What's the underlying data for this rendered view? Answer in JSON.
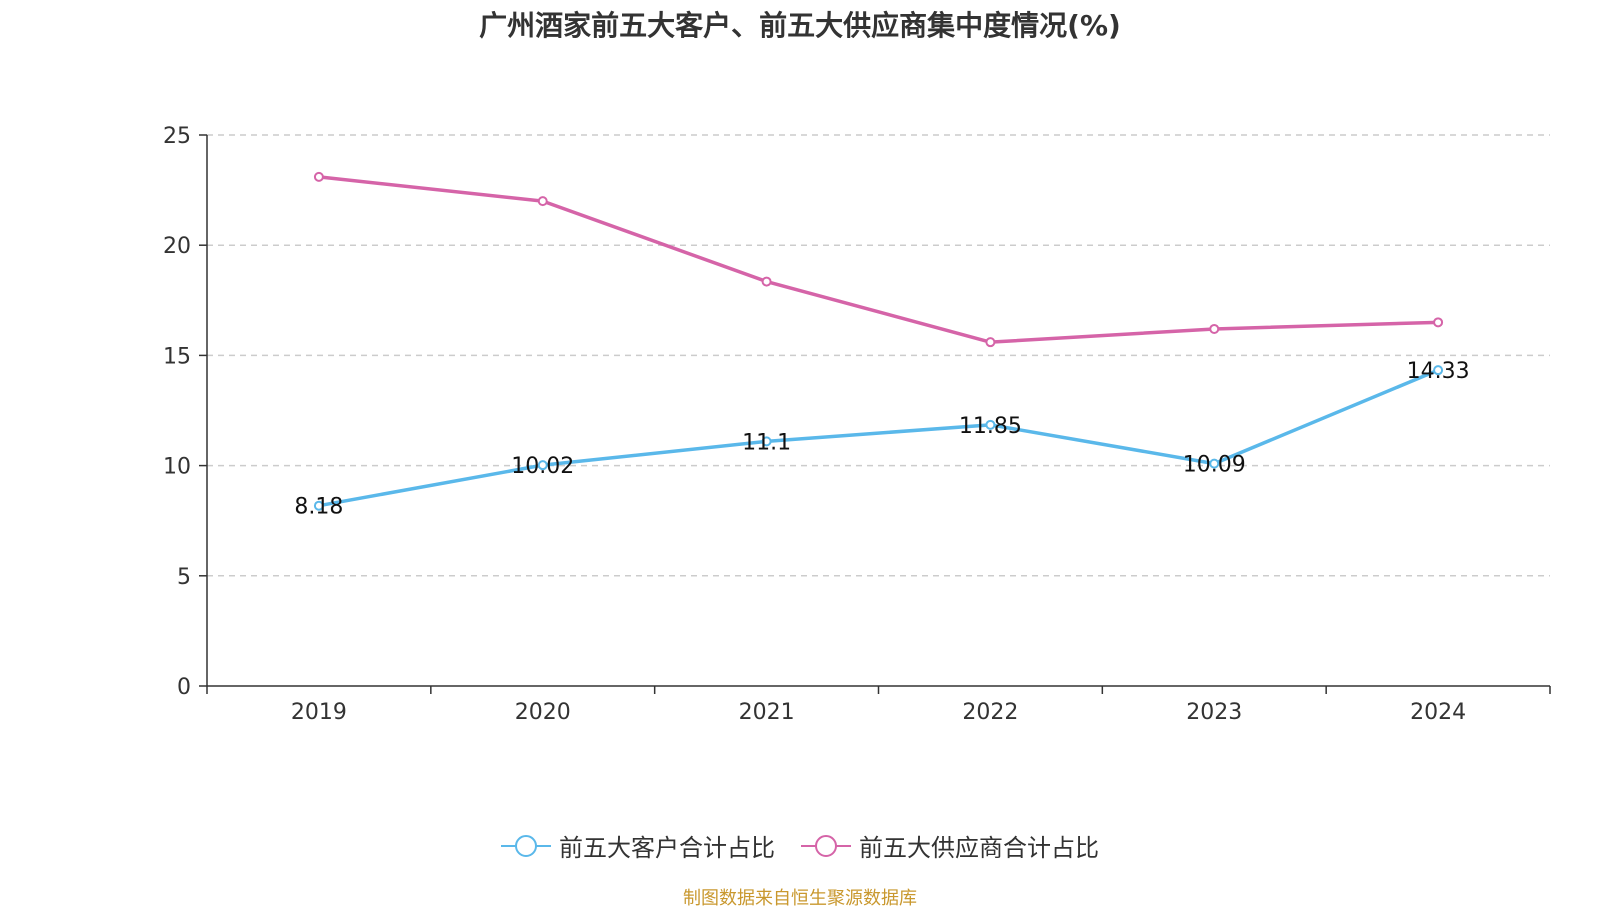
{
  "chart_data": {
    "type": "line",
    "title": "广州酒家前五大客户、前五大供应商集中度情况(%)",
    "categories": [
      "2019",
      "2020",
      "2021",
      "2022",
      "2023",
      "2024"
    ],
    "ylim": [
      0,
      25
    ],
    "yticks": [
      0,
      5,
      10,
      15,
      20,
      25
    ],
    "grid": true,
    "legend_position": "bottom",
    "series": [
      {
        "name": "前五大客户合计占比",
        "color": "#5ab8ea",
        "values": [
          8.18,
          10.02,
          11.1,
          11.85,
          10.09,
          14.33
        ],
        "labels": [
          "8.18",
          "10.02",
          "11.1",
          "11.85",
          "10.09",
          "14.33"
        ]
      },
      {
        "name": "前五大供应商合计占比",
        "color": "#d564a8",
        "values": [
          23.1,
          22.0,
          18.35,
          15.6,
          16.2,
          16.5
        ],
        "labels": []
      }
    ]
  },
  "source_note": "制图数据来自恒生聚源数据库"
}
